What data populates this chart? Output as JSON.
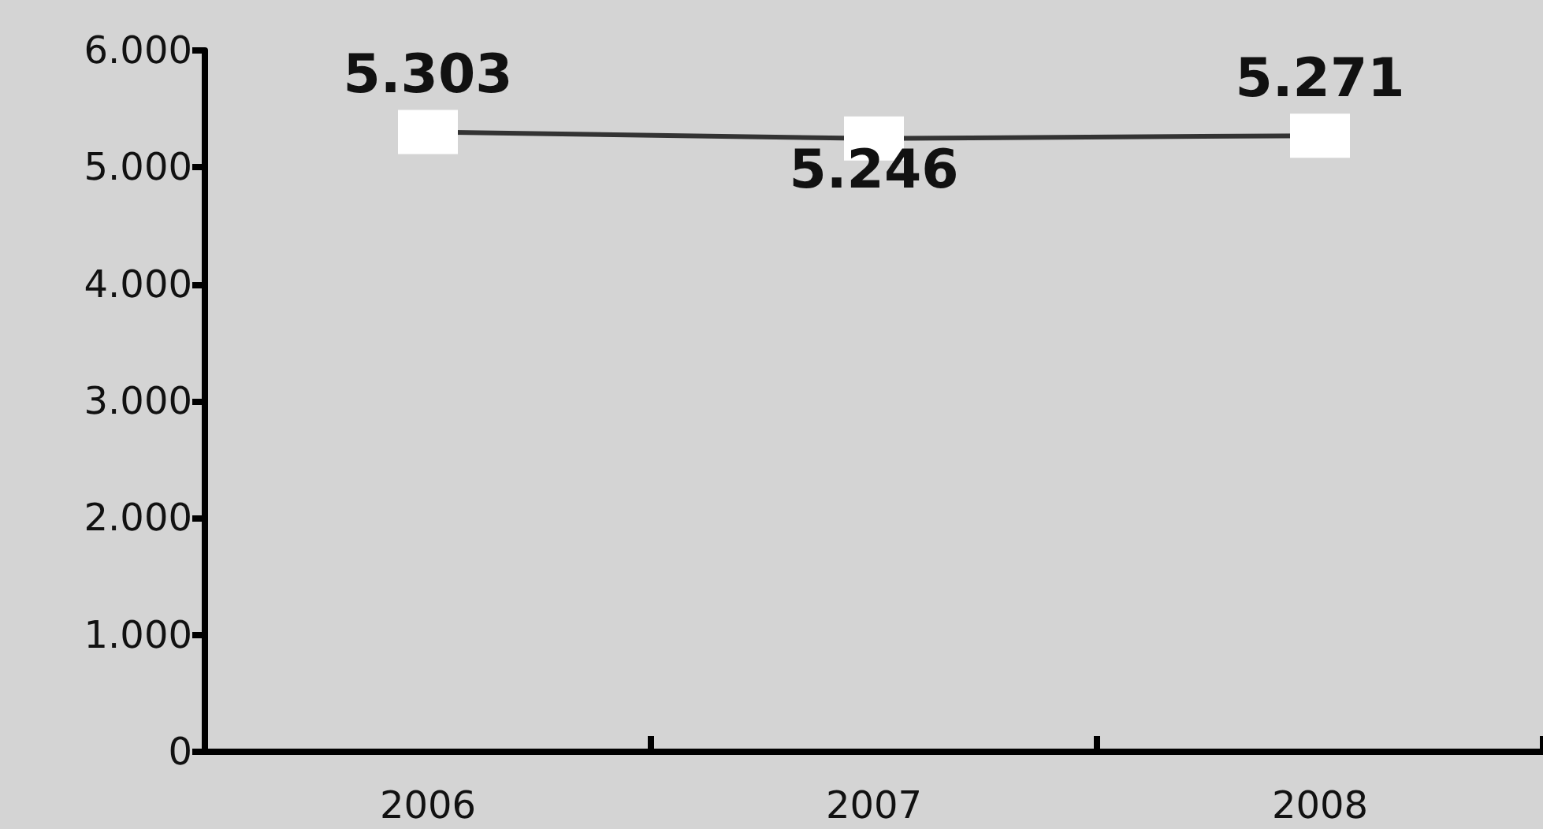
{
  "chart_data": {
    "type": "line",
    "categories": [
      "2006",
      "2007",
      "2008"
    ],
    "series": [
      {
        "color": "#333333",
        "values": [
          5303,
          5246,
          5271
        ],
        "value_labels": [
          "5.303",
          "5.246",
          "5.271"
        ]
      }
    ],
    "ylim": [
      0,
      6000
    ],
    "yticks": [
      {
        "value": 0,
        "label": "0"
      },
      {
        "value": 1000,
        "label": "1.000"
      },
      {
        "value": 2000,
        "label": "2.000"
      },
      {
        "value": 3000,
        "label": "3.000"
      },
      {
        "value": 4000,
        "label": "4.000"
      },
      {
        "value": 5000,
        "label": "5.000"
      },
      {
        "value": 6000,
        "label": "6.000"
      }
    ],
    "marker": "square",
    "line_style": "solid",
    "grid": false
  }
}
